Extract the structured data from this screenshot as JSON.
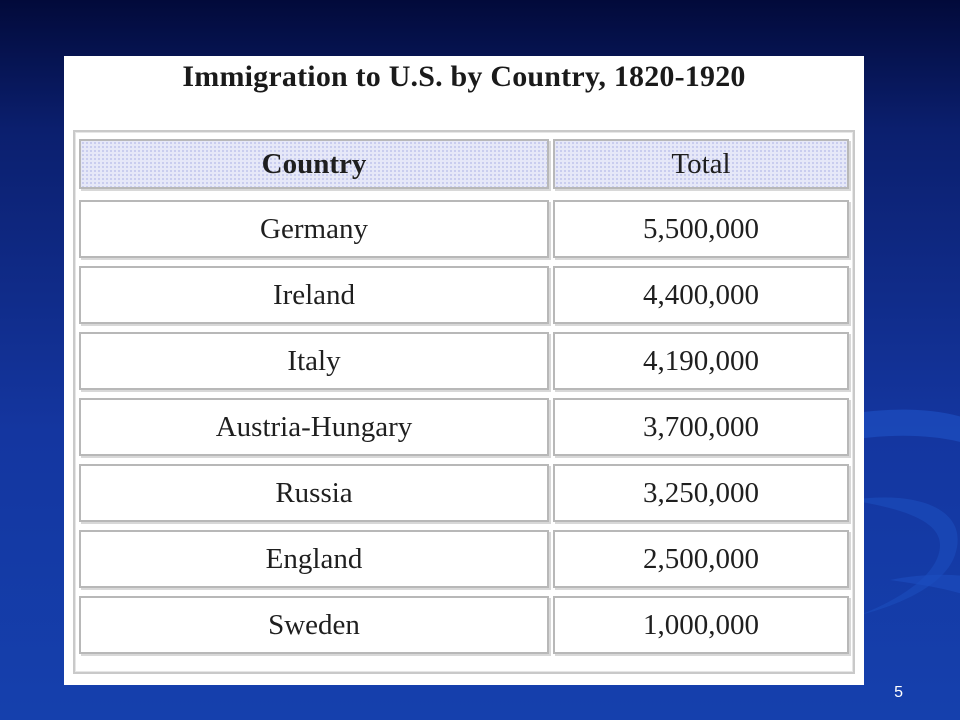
{
  "slide": {
    "title": "Immigration to U.S. by Country, 1820-1920",
    "page_number": "5"
  },
  "table": {
    "columns": [
      "Country",
      "Total"
    ],
    "rows": [
      {
        "country": "Germany",
        "total": "5,500,000"
      },
      {
        "country": "Ireland",
        "total": "4,400,000"
      },
      {
        "country": "Italy",
        "total": "4,190,000"
      },
      {
        "country": "Austria-Hungary",
        "total": "3,700,000"
      },
      {
        "country": "Russia",
        "total": "3,250,000"
      },
      {
        "country": "England",
        "total": "2,500,000"
      },
      {
        "country": "Sweden",
        "total": "1,000,000"
      }
    ]
  },
  "colors": {
    "background_top": "#020a3a",
    "background_bottom": "#1540ad",
    "header_fill": "#e6e8f8"
  }
}
